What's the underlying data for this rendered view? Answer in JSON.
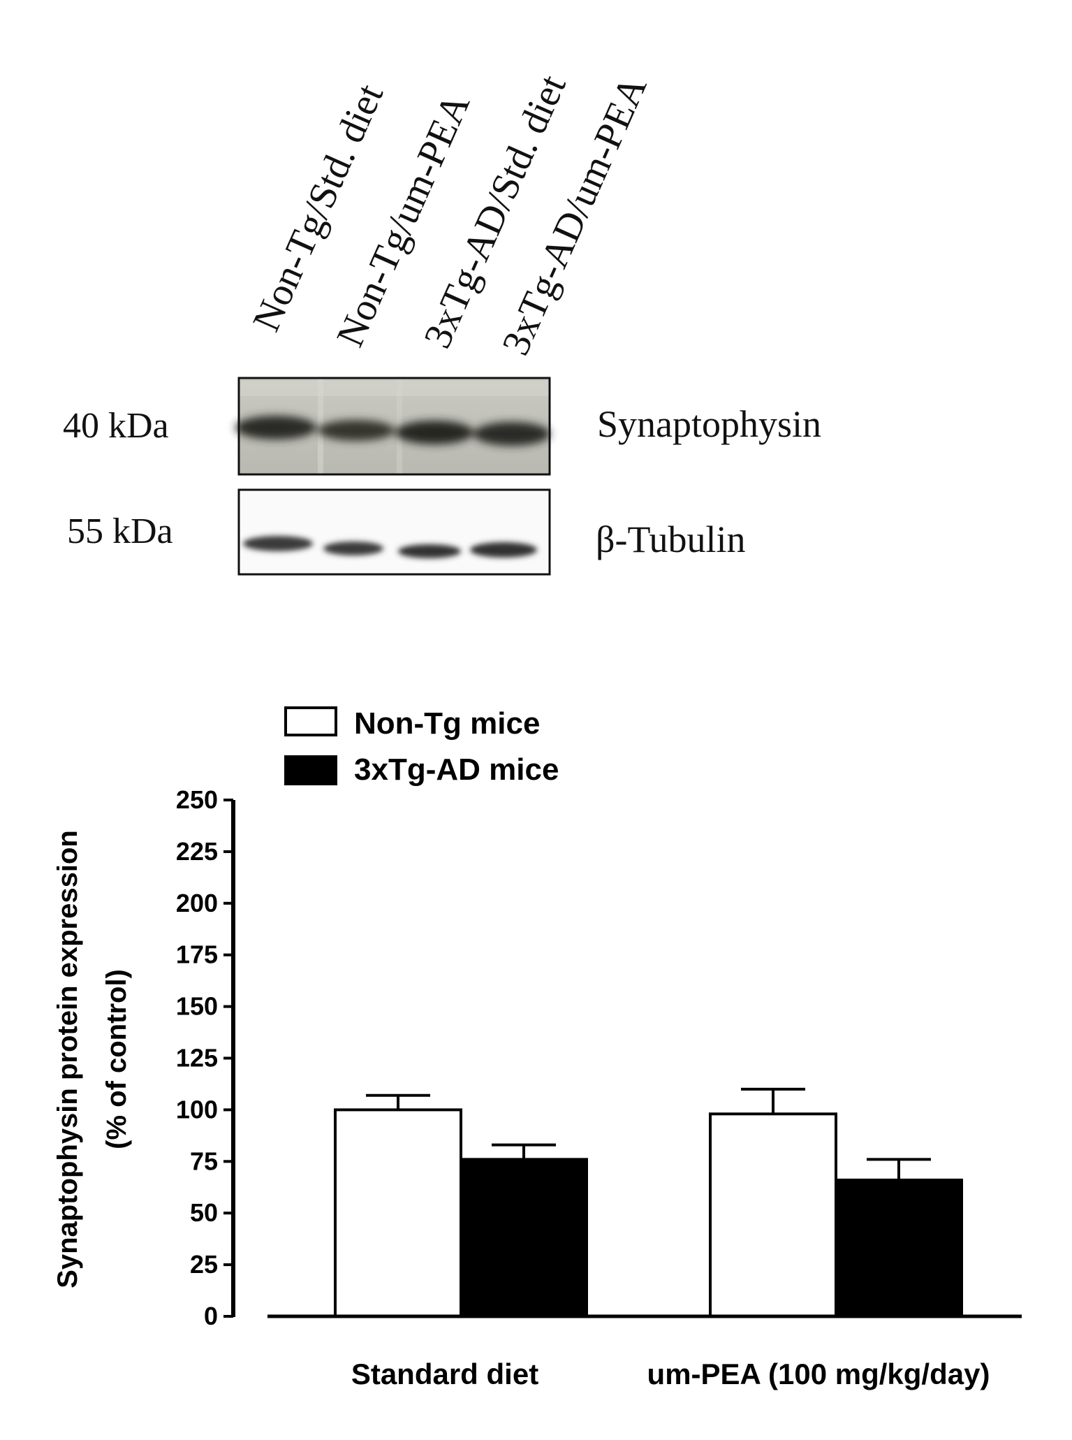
{
  "blot": {
    "lane_labels": [
      "Non-Tg/Std. diet",
      "Non-Tg/um-PEA",
      "3xTg-AD/Std. diet",
      "3xTg-AD/um-PEA"
    ],
    "rows": [
      {
        "size": "40 kDa",
        "protein": "Synaptophysin"
      },
      {
        "size": "55 kDa",
        "protein": "β-Tubulin"
      }
    ]
  },
  "chart_data": {
    "type": "bar",
    "categories": [
      "Standard diet",
      "um-PEA (100 mg/kg/day)"
    ],
    "series": [
      {
        "name": "Non-Tg mice",
        "color": "#ffffff",
        "values": [
          100,
          98
        ],
        "errors": [
          7,
          12
        ]
      },
      {
        "name": "3xTg-AD mice",
        "color": "#000000",
        "values": [
          76,
          66
        ],
        "errors": [
          7,
          10
        ]
      }
    ],
    "ylabel_lines": [
      "Synaptophysin protein expression",
      "(% of control)"
    ],
    "ylim": [
      0,
      250
    ],
    "yticks": [
      0,
      25,
      50,
      75,
      100,
      125,
      150,
      175,
      200,
      225,
      250
    ],
    "grid": false,
    "legend_position": "top-left"
  }
}
